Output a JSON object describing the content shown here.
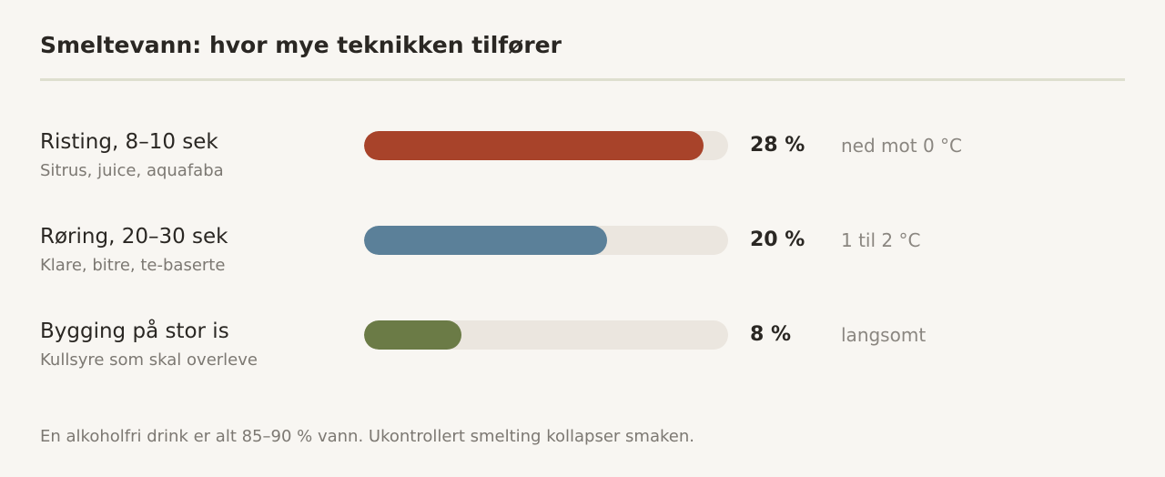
{
  "title": "Smeltevann: hvor mye teknikken tilfører",
  "footnote": "En alkoholfri drink er alt 85–90 % vann. Ukontrollert smelting kollapser smaken.",
  "chart_data": {
    "type": "bar",
    "orientation": "horizontal",
    "title": "Smeltevann: hvor mye teknikken tilfører",
    "xlim": [
      0,
      30
    ],
    "unit": "%",
    "categories": [
      "Risting, 8–10 sek",
      "Røring, 20–30 sek",
      "Bygging på stor is"
    ],
    "values": [
      28,
      20,
      8
    ],
    "rows": [
      {
        "label": "Risting, 8–10 sek",
        "sublabel": "Sitrus, juice, aquafaba",
        "value": 28,
        "value_label": "28 %",
        "note": "ned mot 0 °C",
        "color": "#a8432a"
      },
      {
        "label": "Røring, 20–30 sek",
        "sublabel": "Klare, bitre, te-baserte",
        "value": 20,
        "value_label": "20 %",
        "note": "1 til 2 °C",
        "color": "#5b8099"
      },
      {
        "label": "Bygging på stor is",
        "sublabel": "Kullsyre som skal overleve",
        "value": 8,
        "value_label": "8 %",
        "note": "langsomt",
        "color": "#6b7b46"
      }
    ]
  }
}
